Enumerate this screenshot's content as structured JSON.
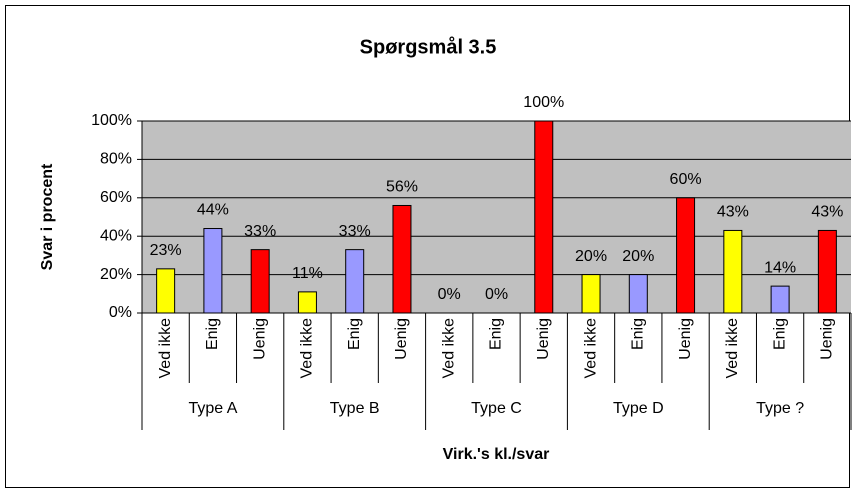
{
  "chart_data": {
    "type": "bar",
    "title": "Spørgsmål 3.5",
    "y_label": "Svar i procent",
    "x_label": "Virk.'s kl./svar",
    "groups": [
      "Type A",
      "Type B",
      "Type C",
      "Type D",
      "Type ?"
    ],
    "categories": [
      "Ved ikke",
      "Enig",
      "Uenig",
      "Ved ikke",
      "Enig",
      "Uenig",
      "Ved ikke",
      "Enig",
      "Uenig",
      "Ved ikke",
      "Enig",
      "Uenig",
      "Ved ikke",
      "Enig",
      "Uenig"
    ],
    "values": [
      23,
      44,
      33,
      11,
      33,
      56,
      0,
      0,
      100,
      20,
      20,
      60,
      43,
      14,
      43
    ],
    "value_labels": [
      "23%",
      "44%",
      "33%",
      "11%",
      "33%",
      "56%",
      "0%",
      "0%",
      "100%",
      "20%",
      "20%",
      "60%",
      "43%",
      "14%",
      "43%"
    ],
    "colors": [
      "#ffff00",
      "#9999ff",
      "#ff0000"
    ],
    "ylim": [
      0,
      100
    ],
    "yticks": [
      {
        "value": 0,
        "label": "0%"
      },
      {
        "value": 20,
        "label": "20%"
      },
      {
        "value": 40,
        "label": "40%"
      },
      {
        "value": 60,
        "label": "60%"
      },
      {
        "value": 80,
        "label": "80%"
      },
      {
        "value": 100,
        "label": "100%"
      }
    ],
    "grid": true
  }
}
